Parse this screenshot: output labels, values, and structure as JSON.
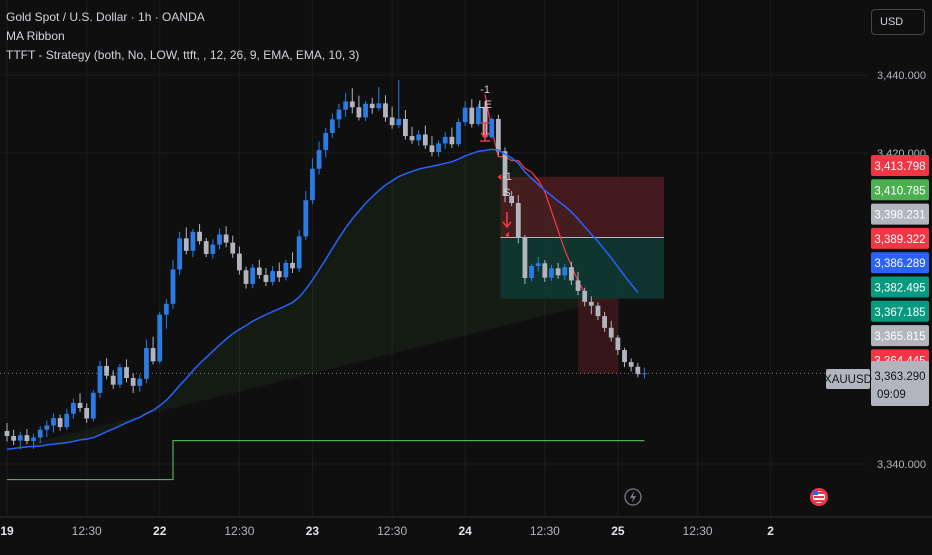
{
  "header": {
    "symbol_line": "Gold Spot / U.S. Dollar · 1h · OANDA",
    "indicator_1": "MA Ribbon",
    "indicator_2": "TTFT - Strategy (both, No, LOW, ttft, , 12, 26, 9, EMA, EMA, 10, 3)"
  },
  "currency_button": "USD",
  "chart_data": {
    "type": "candlestick",
    "symbol": "XAUUSD",
    "timeframe": "1h",
    "y_ticks": [
      3440,
      3420,
      3340
    ],
    "y_tick_labels": [
      "3,440.000",
      "3,420.000",
      "3,340.000"
    ],
    "ylim": [
      3332,
      3449
    ],
    "x_ticks": [
      "19",
      "12:30",
      "22",
      "12:30",
      "23",
      "12:30",
      "24",
      "12:30",
      "25",
      "12:30",
      "2"
    ],
    "colors": {
      "up": "#2a7be4",
      "down": "#b2b5be",
      "ema": "#2962ff",
      "ribbon_line": "#4caf50",
      "stop_line": "#f23645",
      "loss_zone": "#5a1e24",
      "profit_zone": "#0f3a35"
    },
    "candles": [
      [
        3348.5,
        3350.5,
        3345.8,
        3347.2
      ],
      [
        3347.2,
        3348.8,
        3344.9,
        3346.0
      ],
      [
        3346.0,
        3348.3,
        3343.8,
        3347.4
      ],
      [
        3347.4,
        3349.0,
        3345.1,
        3345.9
      ],
      [
        3345.9,
        3347.8,
        3343.9,
        3346.8
      ],
      [
        3346.8,
        3349.7,
        3345.4,
        3348.8
      ],
      [
        3348.8,
        3351.2,
        3346.9,
        3349.9
      ],
      [
        3349.9,
        3353.0,
        3348.1,
        3351.8
      ],
      [
        3351.8,
        3352.7,
        3348.6,
        3349.5
      ],
      [
        3349.5,
        3354.2,
        3348.8,
        3352.9
      ],
      [
        3352.9,
        3356.8,
        3351.6,
        3355.7
      ],
      [
        3355.7,
        3358.2,
        3353.4,
        3354.4
      ],
      [
        3354.4,
        3355.6,
        3350.6,
        3351.7
      ],
      [
        3351.7,
        3359.0,
        3351.0,
        3358.3
      ],
      [
        3358.3,
        3366.5,
        3357.0,
        3365.2
      ],
      [
        3365.2,
        3367.2,
        3361.8,
        3362.7
      ],
      [
        3362.7,
        3364.1,
        3359.3,
        3360.4
      ],
      [
        3360.4,
        3365.8,
        3359.6,
        3364.9
      ],
      [
        3364.9,
        3366.9,
        3361.0,
        3362.1
      ],
      [
        3362.1,
        3363.3,
        3358.2,
        3360.1
      ],
      [
        3360.1,
        3363.0,
        3358.6,
        3361.9
      ],
      [
        3361.9,
        3372.0,
        3360.8,
        3369.8
      ],
      [
        3369.8,
        3372.7,
        3365.6,
        3366.4
      ],
      [
        3366.4,
        3379.1,
        3365.9,
        3378.4
      ],
      [
        3378.4,
        3382.4,
        3374.8,
        3381.2
      ],
      [
        3381.2,
        3392.5,
        3379.9,
        3390.0
      ],
      [
        3390.0,
        3399.7,
        3388.6,
        3398.0
      ],
      [
        3398.0,
        3400.8,
        3393.9,
        3394.8
      ],
      [
        3394.8,
        3400.4,
        3393.2,
        3399.7
      ],
      [
        3399.7,
        3401.7,
        3396.4,
        3397.3
      ],
      [
        3397.3,
        3398.1,
        3393.2,
        3394.0
      ],
      [
        3394.0,
        3397.8,
        3392.8,
        3396.4
      ],
      [
        3396.4,
        3400.5,
        3395.2,
        3399.0
      ],
      [
        3399.0,
        3401.1,
        3395.7,
        3396.9
      ],
      [
        3396.9,
        3398.7,
        3393.0,
        3394.1
      ],
      [
        3394.1,
        3395.9,
        3388.7,
        3389.8
      ],
      [
        3389.8,
        3390.7,
        3385.1,
        3386.3
      ],
      [
        3386.3,
        3391.4,
        3385.2,
        3390.5
      ],
      [
        3390.5,
        3392.5,
        3387.6,
        3388.6
      ],
      [
        3388.6,
        3390.4,
        3385.7,
        3386.8
      ],
      [
        3386.8,
        3390.9,
        3385.9,
        3389.6
      ],
      [
        3389.6,
        3391.8,
        3386.8,
        3388.0
      ],
      [
        3388.0,
        3392.5,
        3387.2,
        3391.7
      ],
      [
        3391.7,
        3394.4,
        3389.1,
        3390.3
      ],
      [
        3390.3,
        3400.1,
        3389.4,
        3398.5
      ],
      [
        3398.5,
        3410.2,
        3397.6,
        3407.8
      ],
      [
        3407.8,
        3418.6,
        3406.8,
        3415.9
      ],
      [
        3415.9,
        3422.9,
        3414.4,
        3420.7
      ],
      [
        3420.7,
        3426.4,
        3418.8,
        3425.1
      ],
      [
        3425.1,
        3430.1,
        3423.9,
        3428.6
      ],
      [
        3428.6,
        3432.6,
        3426.4,
        3431.1
      ],
      [
        3431.1,
        3435.3,
        3429.3,
        3433.2
      ],
      [
        3433.2,
        3436.6,
        3430.1,
        3431.7
      ],
      [
        3431.7,
        3434.7,
        3428.3,
        3429.1
      ],
      [
        3429.1,
        3433.3,
        3428.2,
        3432.6
      ],
      [
        3432.6,
        3434.1,
        3430.0,
        3431.5
      ],
      [
        3431.5,
        3436.9,
        3430.8,
        3432.7
      ],
      [
        3432.7,
        3434.8,
        3428.0,
        3429.1
      ],
      [
        3429.1,
        3431.9,
        3426.2,
        3427.1
      ],
      [
        3427.1,
        3438.7,
        3426.3,
        3428.7
      ],
      [
        3428.7,
        3431.0,
        3423.4,
        3424.3
      ],
      [
        3424.3,
        3426.7,
        3422.3,
        3423.2
      ],
      [
        3423.2,
        3425.8,
        3421.8,
        3424.7
      ],
      [
        3424.7,
        3427.0,
        3421.0,
        3421.9
      ],
      [
        3421.9,
        3424.3,
        3419.1,
        3420.2
      ],
      [
        3420.2,
        3423.2,
        3419.0,
        3422.4
      ],
      [
        3422.4,
        3425.3,
        3421.0,
        3424.1
      ],
      [
        3424.1,
        3426.5,
        3421.2,
        3422.2
      ],
      [
        3422.2,
        3428.8,
        3421.6,
        3427.9
      ],
      [
        3427.9,
        3433.2,
        3426.9,
        3431.6
      ],
      [
        3431.6,
        3433.8,
        3426.5,
        3427.4
      ],
      [
        3427.4,
        3432.6,
        3426.8,
        3431.8
      ],
      [
        3431.8,
        3433.3,
        3423.1,
        3424.0
      ],
      [
        3424.0,
        3429.1,
        3423.6,
        3428.7
      ],
      [
        3428.7,
        3429.8,
        3419.3,
        3420.4
      ],
      [
        3420.4,
        3421.4,
        3407.3,
        3408.9
      ],
      [
        3408.9,
        3410.2,
        3406.3,
        3407.1
      ],
      [
        3407.1,
        3409.1,
        3396.7,
        3398.3
      ],
      [
        3398.3,
        3398.9,
        3386.3,
        3387.8
      ],
      [
        3387.8,
        3391.5,
        3386.9,
        3390.9
      ],
      [
        3390.9,
        3393.2,
        3389.5,
        3391.6
      ],
      [
        3391.6,
        3392.4,
        3386.8,
        3387.9
      ],
      [
        3387.9,
        3391.2,
        3387.1,
        3390.3
      ],
      [
        3390.3,
        3391.7,
        3387.6,
        3388.5
      ],
      [
        3388.5,
        3391.4,
        3387.3,
        3390.6
      ],
      [
        3390.6,
        3392.0,
        3386.0,
        3387.2
      ],
      [
        3387.2,
        3389.4,
        3383.4,
        3384.5
      ],
      [
        3384.5,
        3385.3,
        3380.5,
        3381.7
      ],
      [
        3381.7,
        3383.1,
        3378.5,
        3380.7
      ],
      [
        3380.7,
        3381.5,
        3377.0,
        3378.0
      ],
      [
        3378.0,
        3379.1,
        3374.0,
        3375.0
      ],
      [
        3375.0,
        3376.8,
        3371.5,
        3372.5
      ],
      [
        3372.5,
        3373.1,
        3368.0,
        3369.3
      ],
      [
        3369.3,
        3369.9,
        3364.9,
        3366.2
      ],
      [
        3366.2,
        3367.1,
        3363.8,
        3365.0
      ],
      [
        3365.0,
        3366.0,
        3362.3,
        3363.1
      ],
      [
        3363.1,
        3364.8,
        3362.0,
        3363.3
      ]
    ],
    "ema": [
      3343.8,
      3344.0,
      3344.2,
      3344.4,
      3344.5,
      3344.6,
      3344.9,
      3345.1,
      3345.3,
      3345.5,
      3345.8,
      3346.2,
      3346.4,
      3346.8,
      3347.5,
      3348.3,
      3349.0,
      3349.8,
      3350.6,
      3351.3,
      3352.0,
      3353.0,
      3353.8,
      3355.0,
      3356.4,
      3358.2,
      3360.2,
      3362.0,
      3364.0,
      3365.8,
      3367.4,
      3369.0,
      3370.6,
      3372.1,
      3373.5,
      3374.6,
      3375.6,
      3376.7,
      3377.6,
      3378.4,
      3379.2,
      3379.9,
      3380.7,
      3381.5,
      3382.9,
      3384.9,
      3387.3,
      3389.9,
      3392.6,
      3395.4,
      3398.1,
      3400.7,
      3403.0,
      3405.0,
      3407.0,
      3408.7,
      3410.3,
      3411.7,
      3412.8,
      3413.9,
      3414.6,
      3415.2,
      3415.8,
      3416.2,
      3416.5,
      3416.9,
      3417.3,
      3417.7,
      3418.4,
      3419.2,
      3419.8,
      3420.4,
      3420.6,
      3420.9,
      3420.7,
      3419.7,
      3418.7,
      3417.3,
      3415.1,
      3413.4,
      3411.9,
      3410.3,
      3409.0,
      3407.6,
      3406.3,
      3404.8,
      3403.0,
      3401.0,
      3399.1,
      3397.2,
      3395.1,
      3393.0,
      3390.7,
      3388.4,
      3386.2,
      3384.1
    ],
    "ribbon": [
      3336,
      3336,
      3336,
      3336,
      3336,
      3336,
      3336,
      3336,
      3336,
      3336,
      3336,
      3336,
      3336,
      3336,
      3336,
      3336,
      3336,
      3336,
      3336,
      3336,
      3336,
      3336,
      3336,
      3336,
      3336,
      3346,
      3346,
      3346,
      3346,
      3346,
      3346,
      3346,
      3346,
      3346,
      3346,
      3346,
      3346,
      3346,
      3346,
      3346,
      3346,
      3346,
      3346,
      3346,
      3346,
      3346,
      3346,
      3346,
      3346,
      3346,
      3346,
      3346,
      3346,
      3346,
      3346,
      3346,
      3346,
      3346,
      3346,
      3346,
      3346,
      3346,
      3346,
      3346,
      3346,
      3346,
      3346,
      3346,
      3346,
      3346,
      3346,
      3346,
      3346,
      3346,
      3346,
      3346,
      3346,
      3346,
      3346,
      3346,
      3346,
      3346,
      3346,
      3346,
      3346,
      3346,
      3346,
      3346,
      3346,
      3346,
      3346,
      3346,
      3346,
      3346,
      3346,
      3346
    ],
    "x_tick_index": [
      0,
      12,
      23,
      35,
      46,
      58,
      69,
      81,
      92,
      104,
      115
    ],
    "price_labels": [
      {
        "text": "3,413.798",
        "bg": "#f23645"
      },
      {
        "text": "3,410.785",
        "bg": "#4caf50"
      },
      {
        "text": "3,398.231",
        "bg": "#b2b5be"
      },
      {
        "text": "3,389.322",
        "bg": "#f23645"
      },
      {
        "text": "3,386.289",
        "bg": "#2962ff"
      },
      {
        "text": "3,382.495",
        "bg": "#089981"
      },
      {
        "text": "3,367.185",
        "bg": "#089981"
      },
      {
        "text": "3,365.815",
        "bg": "#b2b5be"
      },
      {
        "text": "3,364.445",
        "bg": "#f23645"
      }
    ],
    "last_price": {
      "symbol": "XAUUSD",
      "price": "3,363.290",
      "countdown": "09:09",
      "value": 3363.29
    },
    "signals": {
      "long_entry": {
        "qty": "-1",
        "label": "LE"
      },
      "short_entry": {
        "qty": "-1",
        "label": "S"
      }
    },
    "icons": [
      "lightning-icon",
      "us-flag-icon"
    ]
  }
}
